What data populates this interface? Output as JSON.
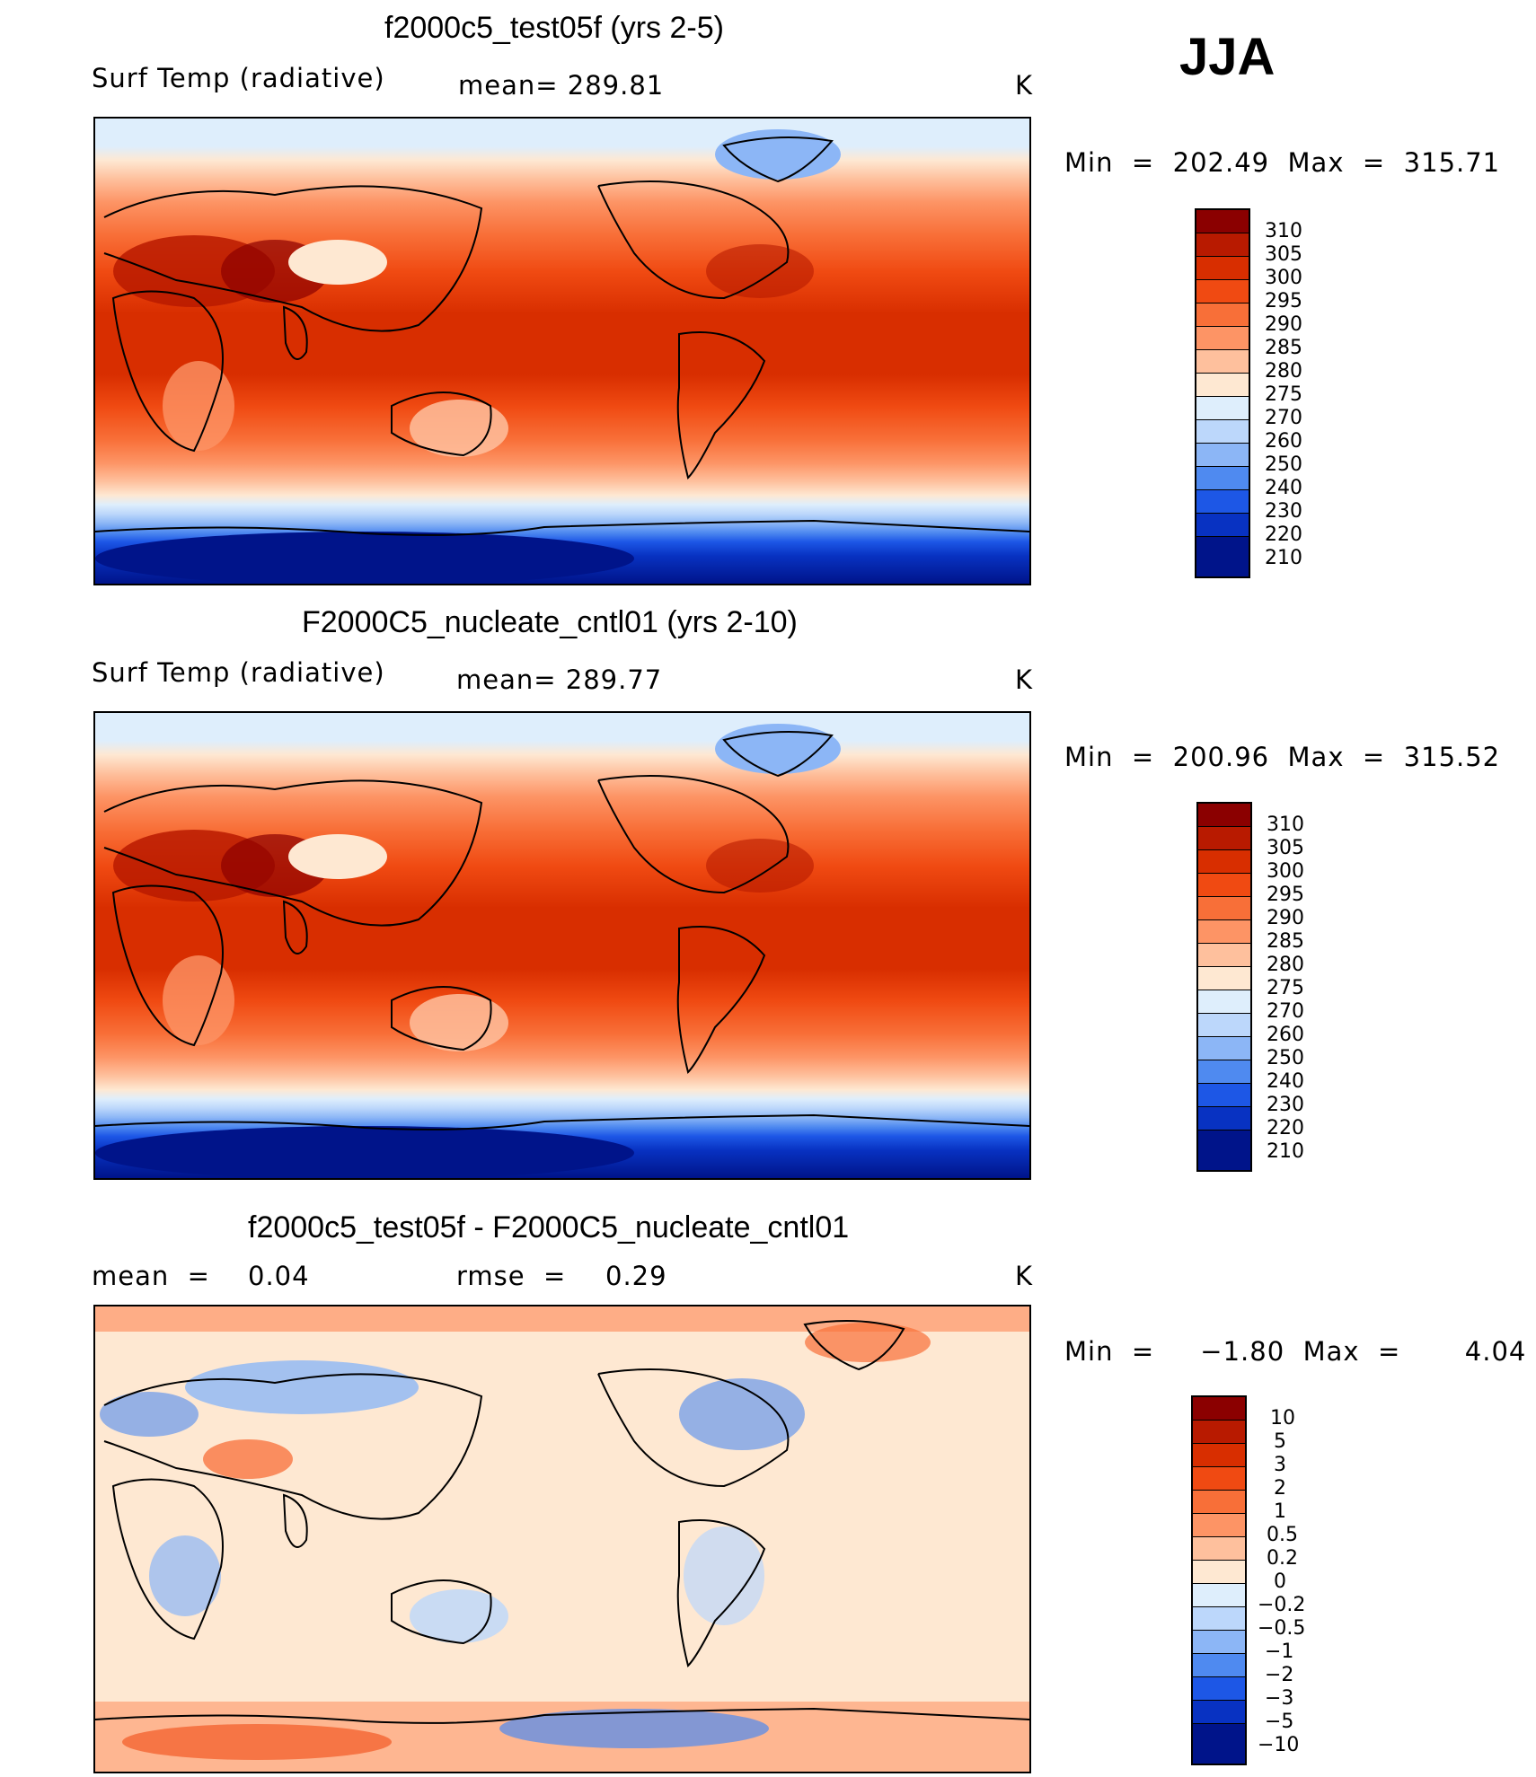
{
  "season": "JJA",
  "chart_data": [
    {
      "type": "heatmap",
      "title": "f2000c5_test05f (yrs 2-5)",
      "variable": "Surf Temp (radiative)",
      "mean_label": "mean= 289.81",
      "units": "K",
      "minmax": "Min  =  202.49  Max  =  315.71",
      "levels": [
        "310",
        "305",
        "300",
        "295",
        "290",
        "285",
        "280",
        "275",
        "270",
        "260",
        "250",
        "240",
        "230",
        "220",
        "210"
      ],
      "colors": [
        "#8b0000",
        "#b81a00",
        "#d82e00",
        "#f04a12",
        "#f86f38",
        "#fd9465",
        "#fec09d",
        "#fee8d2",
        "#deeefc",
        "#bcd7fb",
        "#8cb6f6",
        "#4f8af0",
        "#1d57e6",
        "#0832c2",
        "#00148a"
      ]
    },
    {
      "type": "heatmap",
      "title": "F2000C5_nucleate_cntl01 (yrs 2-10)",
      "variable": "Surf Temp (radiative)",
      "mean_label": "mean= 289.77",
      "units": "K",
      "minmax": "Min  =  200.96  Max  =  315.52",
      "levels": [
        "310",
        "305",
        "300",
        "295",
        "290",
        "285",
        "280",
        "275",
        "270",
        "260",
        "250",
        "240",
        "230",
        "220",
        "210"
      ],
      "colors": [
        "#8b0000",
        "#b81a00",
        "#d82e00",
        "#f04a12",
        "#f86f38",
        "#fd9465",
        "#fec09d",
        "#fee8d2",
        "#deeefc",
        "#bcd7fb",
        "#8cb6f6",
        "#4f8af0",
        "#1d57e6",
        "#0832c2",
        "#00148a"
      ]
    },
    {
      "type": "heatmap",
      "title": "f2000c5_test05f - F2000C5_nucleate_cntl01",
      "mean_label": "mean  =",
      "mean_value": "0.04",
      "rmse_label": "rmse  =",
      "rmse_value": "0.29",
      "units": "K",
      "minmax": "Min  =     −1.80  Max  =       4.04",
      "levels": [
        "10",
        "5",
        "3",
        "2",
        "1",
        "0.5",
        "0.2",
        "0",
        "−0.2",
        "−0.5",
        "−1",
        "−2",
        "−3",
        "−5",
        "−10"
      ],
      "colors": [
        "#8b0000",
        "#b81a00",
        "#d82e00",
        "#f04a12",
        "#f86f38",
        "#fd9465",
        "#fec09d",
        "#fee8d2",
        "#deeefc",
        "#bcd7fb",
        "#8cb6f6",
        "#4f8af0",
        "#1d57e6",
        "#0832c2",
        "#00148a"
      ]
    }
  ]
}
